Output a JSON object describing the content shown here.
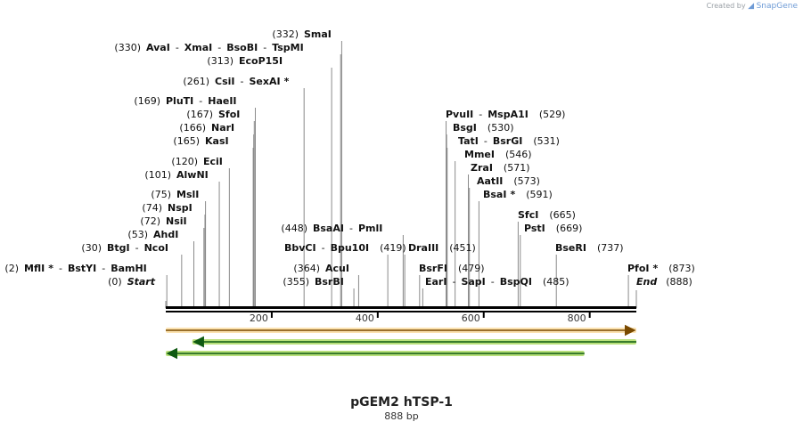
{
  "brand": {
    "prefix": "Created by",
    "name": "SnapGene"
  },
  "map": {
    "title": "pGEM2 hTSP-1",
    "length_label": "888 bp",
    "length": 888,
    "axis_ticks": [
      {
        "pos": 200,
        "label": "200"
      },
      {
        "pos": 400,
        "label": "400"
      },
      {
        "pos": 600,
        "label": "600"
      },
      {
        "pos": 800,
        "label": "800"
      }
    ],
    "start_label": "Start",
    "start_pos": "(0)",
    "end_label": "End",
    "end_pos": "(888)",
    "features": [
      {
        "name": "feature-orange",
        "start": 0,
        "end": 888,
        "direction": "forward",
        "color": "#f0a830",
        "fill": "#fbe2b0"
      },
      {
        "name": "feature-green-1",
        "start": 50,
        "end": 888,
        "direction": "reverse",
        "color": "#2f9a2a",
        "fill": "#b8e07a"
      },
      {
        "name": "feature-green-2",
        "start": 0,
        "end": 790,
        "direction": "reverse",
        "color": "#2f9a2a",
        "fill": "#b8e07a"
      }
    ],
    "colors": {
      "line": "#000000",
      "leader": "#8a8a8a",
      "text": "#111111"
    }
  },
  "site_rows": [
    {
      "side": "left",
      "parts": [
        {
          "name": "SmaI",
          "pos": "(332)",
          "site": 332
        }
      ]
    },
    {
      "side": "left",
      "parts": [
        {
          "name": "AvaI",
          "pos": "(330)",
          "site": 330
        },
        {
          "name": "XmaI",
          "site": 330
        },
        {
          "name": "BsoBI",
          "site": 330
        },
        {
          "name": "TspMI",
          "site": 330
        }
      ]
    },
    {
      "side": "left",
      "parts": [
        {
          "name": "EcoP15I",
          "pos": "(313)",
          "site": 313
        }
      ]
    },
    {
      "side": "left",
      "parts": [
        {
          "name": "CsiI",
          "pos": "(261)",
          "site": 261
        },
        {
          "name": "SexAI",
          "star": true,
          "site": 261
        }
      ]
    },
    {
      "side": "left",
      "parts": [
        {
          "name": "PluTI",
          "pos": "(169)",
          "site": 169
        },
        {
          "name": "HaeII",
          "site": 169
        }
      ]
    },
    {
      "side": "left",
      "parts": [
        {
          "name": "SfoI",
          "pos": "(167)",
          "site": 167
        }
      ]
    },
    {
      "side": "left",
      "parts": [
        {
          "name": "NarI",
          "pos": "(166)",
          "site": 166
        }
      ]
    },
    {
      "side": "left",
      "parts": [
        {
          "name": "KasI",
          "pos": "(165)",
          "site": 165
        }
      ]
    },
    {
      "side": "left",
      "parts": [
        {
          "name": "EciI",
          "pos": "(120)",
          "site": 120
        }
      ]
    },
    {
      "side": "left",
      "parts": [
        {
          "name": "AlwNI",
          "pos": "(101)",
          "site": 101
        }
      ]
    },
    {
      "side": "left",
      "parts": [
        {
          "name": "MslI",
          "pos": "(75)",
          "site": 75
        }
      ]
    },
    {
      "side": "left",
      "parts": [
        {
          "name": "NspI",
          "pos": "(74)",
          "site": 74
        }
      ]
    },
    {
      "side": "left",
      "parts": [
        {
          "name": "NsiI",
          "pos": "(72)",
          "site": 72
        }
      ]
    },
    {
      "side": "left",
      "parts": [
        {
          "name": "AhdI",
          "pos": "(53)",
          "site": 53
        }
      ]
    },
    {
      "side": "left",
      "parts": [
        {
          "name": "BtgI",
          "pos": "(30)",
          "site": 30
        },
        {
          "name": "NcoI",
          "site": 30
        }
      ]
    },
    {
      "side": "left",
      "parts": [
        {
          "name": "MflI",
          "star": true,
          "pos": "(2)",
          "site": 2
        },
        {
          "name": "BstYI",
          "site": 2
        },
        {
          "name": "BamHI",
          "site": 2
        }
      ]
    },
    {
      "side": "left",
      "parts": [
        {
          "name": "BsaAI",
          "pos": "(448)",
          "site": 448
        },
        {
          "name": "PmlI",
          "site": 448
        }
      ]
    },
    {
      "side": "right",
      "parts": [
        {
          "name": "BbvCI",
          "pos": "(419)",
          "site": 419
        },
        {
          "name": "Bpu10I",
          "site": 419
        }
      ]
    },
    {
      "side": "left",
      "parts": [
        {
          "name": "AcuI",
          "pos": "(364)",
          "site": 364
        }
      ]
    },
    {
      "side": "left",
      "parts": [
        {
          "name": "BsrBI",
          "pos": "(355)",
          "site": 355
        }
      ]
    },
    {
      "side": "right",
      "parts": [
        {
          "name": "DraIII",
          "pos": "(451)",
          "site": 451
        }
      ]
    },
    {
      "side": "right",
      "parts": [
        {
          "name": "BsrFI",
          "pos": "(479)",
          "site": 479
        }
      ]
    },
    {
      "side": "right",
      "parts": [
        {
          "name": "EarI",
          "pos": "(485)",
          "site": 485
        },
        {
          "name": "SapI",
          "site": 485
        },
        {
          "name": "BspQI",
          "site": 485
        }
      ]
    },
    {
      "side": "right",
      "parts": [
        {
          "name": "PvuII",
          "pos": "(529)",
          "site": 529
        },
        {
          "name": "MspA1I",
          "site": 529
        }
      ]
    },
    {
      "side": "right",
      "parts": [
        {
          "name": "BsgI",
          "pos": "(530)",
          "site": 530
        }
      ]
    },
    {
      "side": "right",
      "parts": [
        {
          "name": "TatI",
          "pos": "(531)",
          "site": 531
        },
        {
          "name": "BsrGI",
          "site": 531
        }
      ]
    },
    {
      "side": "right",
      "parts": [
        {
          "name": "MmeI",
          "pos": "(546)",
          "site": 546
        }
      ]
    },
    {
      "side": "right",
      "parts": [
        {
          "name": "ZraI",
          "pos": "(571)",
          "site": 571
        }
      ]
    },
    {
      "side": "right",
      "parts": [
        {
          "name": "AatII",
          "pos": "(573)",
          "site": 573
        }
      ]
    },
    {
      "side": "right",
      "parts": [
        {
          "name": "BsaI",
          "star": true,
          "pos": "(591)",
          "site": 591
        }
      ]
    },
    {
      "side": "right",
      "parts": [
        {
          "name": "SfcI",
          "pos": "(665)",
          "site": 665
        }
      ]
    },
    {
      "side": "right",
      "parts": [
        {
          "name": "PstI",
          "pos": "(669)",
          "site": 669
        }
      ]
    },
    {
      "side": "right",
      "parts": [
        {
          "name": "BseRI",
          "pos": "(737)",
          "site": 737
        }
      ]
    },
    {
      "side": "right",
      "parts": [
        {
          "name": "PfoI",
          "star": true,
          "pos": "(873)",
          "site": 873
        }
      ]
    }
  ]
}
